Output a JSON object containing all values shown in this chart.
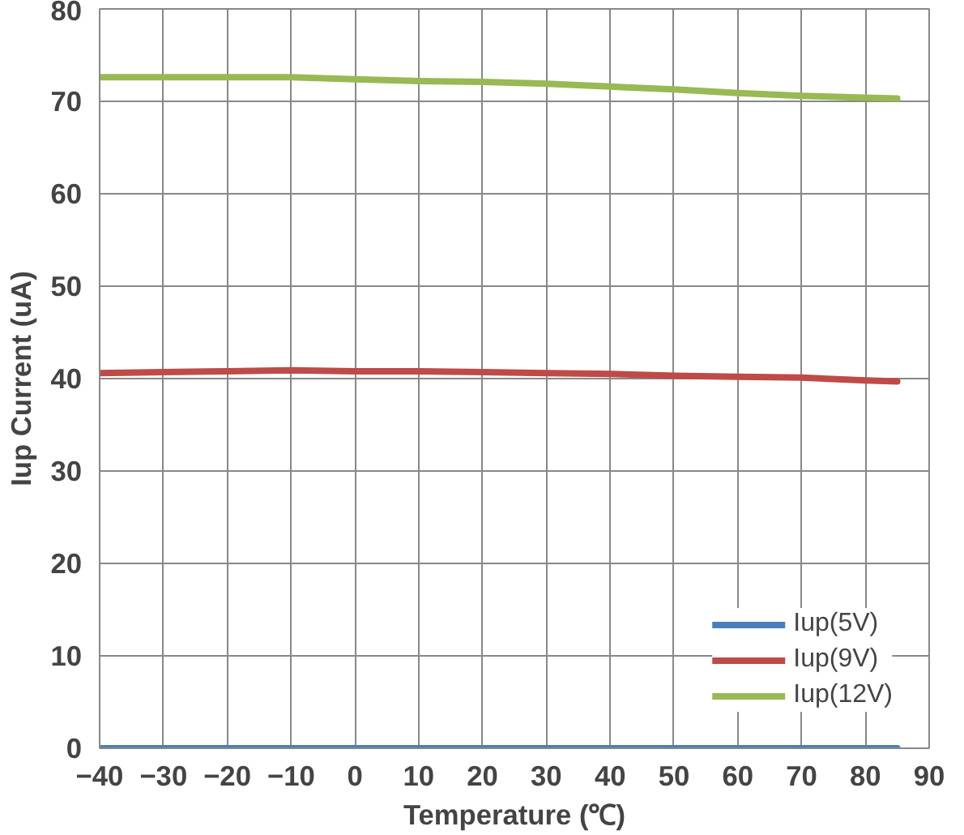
{
  "chart_data": {
    "type": "line",
    "xlabel": "Temperature (℃)",
    "ylabel": "Iup Current (uA)",
    "x": [
      -40,
      -30,
      -20,
      -10,
      0,
      10,
      20,
      30,
      40,
      50,
      60,
      70,
      80,
      85
    ],
    "series": [
      {
        "name": "Iup(5V)",
        "color": "#4a7ebb",
        "values": [
          0,
          0,
          0,
          0,
          0,
          0,
          0,
          0,
          0,
          0,
          0,
          0,
          0,
          0
        ]
      },
      {
        "name": "Iup(9V)",
        "color": "#be4b48",
        "values": [
          40.6,
          40.7,
          40.8,
          40.9,
          40.8,
          40.8,
          40.7,
          40.6,
          40.5,
          40.3,
          40.2,
          40.1,
          39.8,
          39.7
        ]
      },
      {
        "name": "Iup(12V)",
        "color": "#98b954",
        "values": [
          72.6,
          72.6,
          72.6,
          72.6,
          72.4,
          72.2,
          72.1,
          71.9,
          71.6,
          71.3,
          70.9,
          70.6,
          70.4,
          70.3
        ]
      }
    ],
    "xlim": [
      -40,
      90
    ],
    "xticks": [
      -40,
      -30,
      -20,
      -10,
      0,
      10,
      20,
      30,
      40,
      50,
      60,
      70,
      80,
      90
    ],
    "ylim": [
      0,
      80
    ],
    "yticks": [
      0,
      10,
      20,
      30,
      40,
      50,
      60,
      70,
      80
    ],
    "grid": true,
    "legend": "bottom right",
    "marker": "none",
    "line_style": "solid"
  }
}
